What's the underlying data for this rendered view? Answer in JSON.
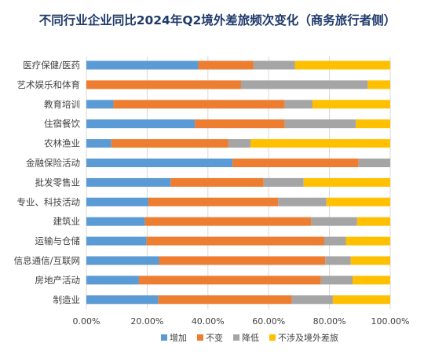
{
  "chart_data": {
    "type": "bar",
    "orientation": "horizontal",
    "stacked": true,
    "title": "不同行业企业同比2024年Q2境外差旅频次变化（商务旅行者侧）",
    "categories": [
      "医疗保健/医药",
      "艺术娱乐和体育",
      "教育培训",
      "住宿餐饮",
      "农林渔业",
      "金融保险活动",
      "批发零售业",
      "专业、科技活动",
      "建筑业",
      "运输与仓储",
      "信息通信/互联网",
      "房地产活动",
      "制造业"
    ],
    "series": [
      {
        "name": "增加",
        "color": "#5b9bd5",
        "values": [
          36.8,
          0,
          8.9,
          35.7,
          8.2,
          48.1,
          27.7,
          20.4,
          19.3,
          19.8,
          23.9,
          17.3,
          23.7
        ]
      },
      {
        "name": "不变",
        "color": "#ed7d31",
        "values": [
          18.2,
          50.9,
          56.4,
          29.6,
          38.6,
          41.5,
          30.6,
          42.7,
          54.7,
          58.5,
          54.7,
          59.9,
          43.9
        ]
      },
      {
        "name": "降低",
        "color": "#a5a5a5",
        "values": [
          13.6,
          41.7,
          9.1,
          23.4,
          7.2,
          10.4,
          13.2,
          15.9,
          15.1,
          7.1,
          8.4,
          10.4,
          13.5
        ]
      },
      {
        "name": "不涉及境外差旅",
        "color": "#ffc000",
        "values": [
          31.4,
          7.4,
          25.6,
          11.3,
          46.0,
          0,
          28.5,
          21.0,
          10.9,
          14.6,
          13.0,
          12.4,
          18.9
        ]
      }
    ],
    "xlim": [
      0,
      100
    ],
    "x_ticks": [
      "0.00%",
      "20.00%",
      "40.00%",
      "60.00%",
      "80.00%",
      "100.00%"
    ],
    "grid": true,
    "legend": "bottom"
  }
}
